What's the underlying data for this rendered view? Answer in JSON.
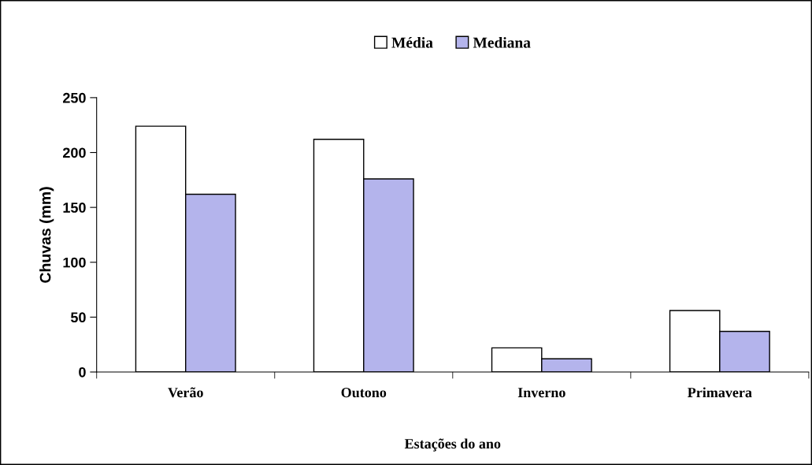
{
  "chart_data": {
    "type": "bar",
    "xlabel": "Estações do ano",
    "ylabel": "Chuvas (mm)",
    "categories": [
      "Verão",
      "Outono",
      "Inverno",
      "Primavera"
    ],
    "series": [
      {
        "name": "Média",
        "color": "#ffffff",
        "values": [
          224,
          212,
          22,
          56
        ]
      },
      {
        "name": "Mediana",
        "color": "#b4b4ec",
        "values": [
          162,
          176,
          12,
          37
        ]
      }
    ],
    "ylim": [
      0,
      250
    ],
    "yticks": [
      0,
      50,
      100,
      150,
      200,
      250
    ],
    "grid": false,
    "legend": "top"
  }
}
